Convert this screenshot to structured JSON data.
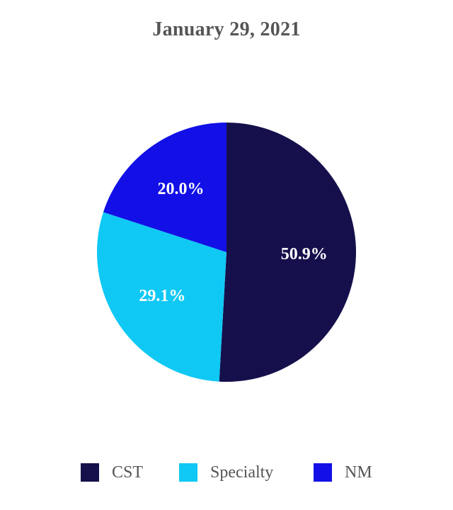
{
  "chart_data": {
    "type": "pie",
    "title": "January 29, 2021",
    "slices": [
      {
        "label": "CST",
        "value": 50.9,
        "value_label": "50.9%",
        "color": "#15104b"
      },
      {
        "label": "Specialty",
        "value": 29.1,
        "value_label": "29.1%",
        "color": "#10c8f4"
      },
      {
        "label": "NM",
        "value": 20.0,
        "value_label": "20.0%",
        "color": "#1210e6"
      }
    ],
    "legend_position": "bottom"
  }
}
